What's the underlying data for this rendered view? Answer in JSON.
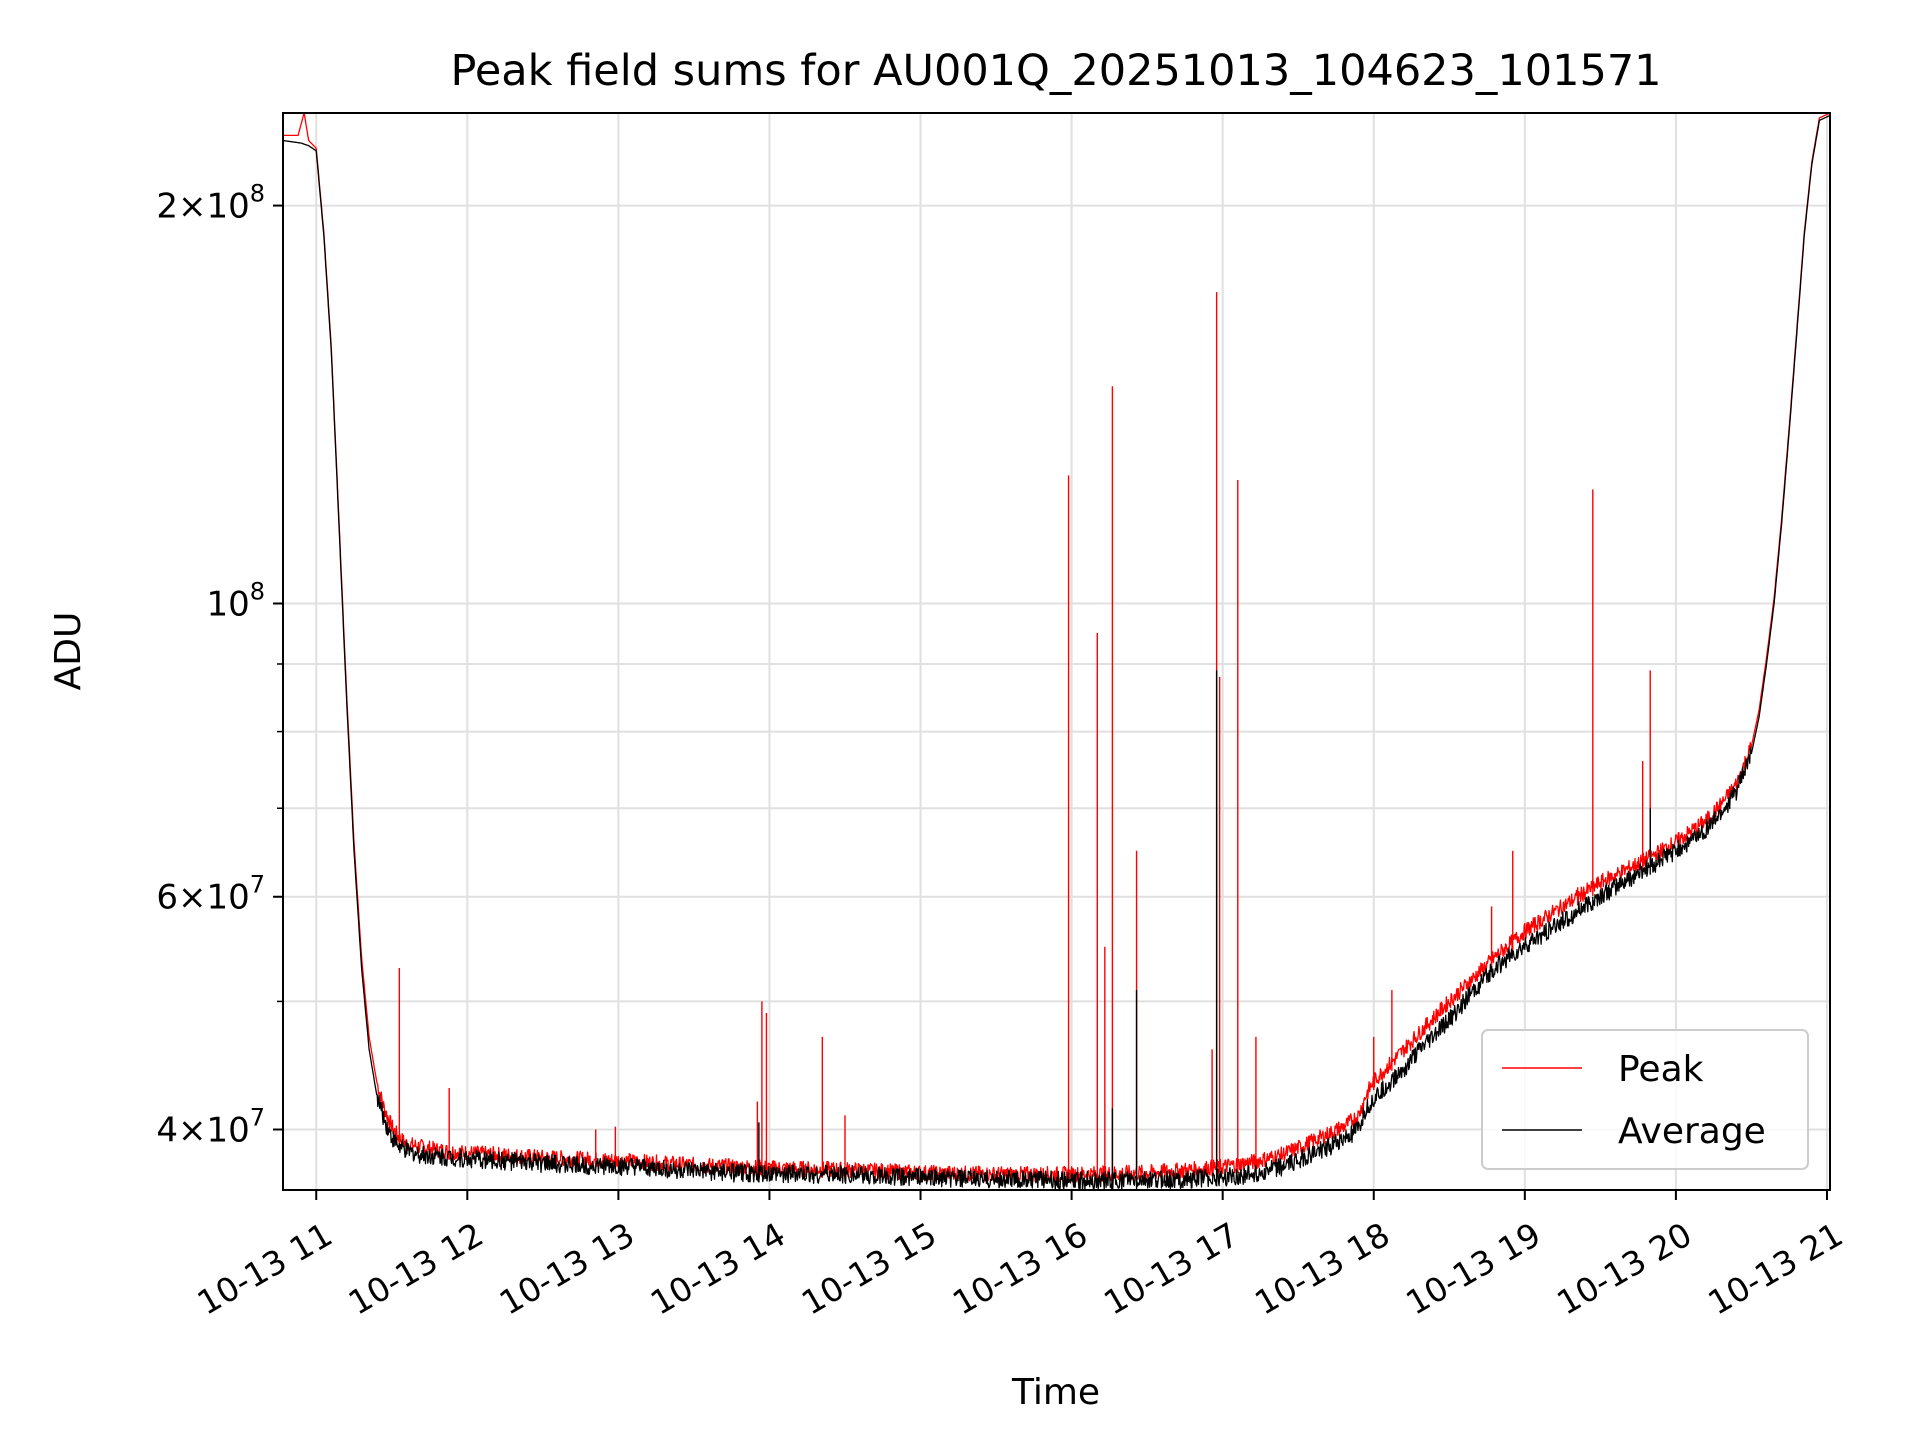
{
  "chart_data": {
    "type": "line",
    "title": "Peak field sums for AU001Q_20251013_104623_101571",
    "xlabel": "Time",
    "ylabel": "ADU",
    "yscale": "log",
    "ylim": [
      36000000,
      235000000
    ],
    "xlim_hours": [
      10.78,
      21.02
    ],
    "x_unit": "hour of 2025-10-13",
    "grid": true,
    "legend_position": "lower right",
    "xticks": [
      {
        "value": 11,
        "label": "10-13 11"
      },
      {
        "value": 12,
        "label": "10-13 12"
      },
      {
        "value": 13,
        "label": "10-13 13"
      },
      {
        "value": 14,
        "label": "10-13 14"
      },
      {
        "value": 15,
        "label": "10-13 15"
      },
      {
        "value": 16,
        "label": "10-13 16"
      },
      {
        "value": 17,
        "label": "10-13 17"
      },
      {
        "value": 18,
        "label": "10-13 18"
      },
      {
        "value": 19,
        "label": "10-13 19"
      },
      {
        "value": 20,
        "label": "10-13 20"
      },
      {
        "value": 21,
        "label": "10-13 21"
      }
    ],
    "yticks": [
      {
        "value": 40000000,
        "base": "4×10",
        "exp": "7"
      },
      {
        "value": 60000000,
        "base": "6×10",
        "exp": "7"
      },
      {
        "value": 100000000,
        "base": "10",
        "exp": "8"
      },
      {
        "value": 200000000,
        "base": "2×10",
        "exp": "8"
      }
    ],
    "yminor": [
      50000000,
      70000000,
      80000000,
      90000000
    ],
    "series": [
      {
        "name": "Average",
        "color": "#000000",
        "x": [
          10.78,
          10.9,
          10.95,
          11.0,
          11.05,
          11.1,
          11.15,
          11.2,
          11.25,
          11.3,
          11.35,
          11.4,
          11.45,
          11.5,
          11.55,
          11.6,
          11.7,
          11.8,
          12.0,
          12.5,
          13.0,
          13.5,
          14.0,
          14.5,
          15.0,
          15.5,
          16.0,
          16.5,
          16.8,
          17.0,
          17.2,
          17.4,
          17.6,
          17.8,
          17.9,
          17.95,
          18.0,
          18.2,
          18.5,
          18.8,
          19.0,
          19.2,
          19.5,
          19.8,
          20.0,
          20.2,
          20.3,
          20.4,
          20.5,
          20.55,
          20.6,
          20.65,
          20.7,
          20.75,
          20.8,
          20.85,
          20.9,
          20.95,
          21.02
        ],
        "y": [
          224000000,
          223000000,
          222000000,
          220000000,
          190000000,
          155000000,
          115000000,
          85000000,
          65000000,
          53000000,
          46000000,
          42500000,
          40700000,
          39500000,
          38800000,
          38500000,
          38300000,
          38200000,
          38000000,
          37700000,
          37500000,
          37200000,
          37000000,
          37000000,
          36800000,
          36700000,
          36600000,
          36600000,
          36700000,
          36800000,
          37000000,
          37500000,
          38300000,
          39300000,
          40000000,
          41500000,
          42200000,
          44500000,
          48500000,
          53000000,
          55000000,
          57000000,
          60000000,
          63000000,
          65000000,
          67500000,
          69500000,
          72000000,
          77000000,
          82000000,
          90000000,
          100000000,
          115000000,
          135000000,
          160000000,
          190000000,
          215000000,
          232000000,
          234000000
        ]
      },
      {
        "name": "Peak",
        "color": "#ff0000",
        "x": [
          10.78,
          10.88,
          10.92,
          10.95,
          11.0,
          11.05,
          11.1,
          11.15,
          11.2,
          11.25,
          11.3,
          11.35,
          11.4,
          11.45,
          11.5,
          11.55,
          11.6,
          11.7,
          11.8,
          12.0,
          12.5,
          13.0,
          13.5,
          14.0,
          14.5,
          15.0,
          15.5,
          16.0,
          16.5,
          16.8,
          17.0,
          17.2,
          17.4,
          17.6,
          17.8,
          17.9,
          17.95,
          18.0,
          18.2,
          18.5,
          18.8,
          19.0,
          19.2,
          19.5,
          19.8,
          20.0,
          20.2,
          20.3,
          20.4,
          20.5,
          20.55,
          20.6,
          20.65,
          20.7,
          20.75,
          20.8,
          20.85,
          20.9,
          20.95,
          21.02
        ],
        "y": [
          226000000,
          226000000,
          235000000,
          224000000,
          221000000,
          191000000,
          156000000,
          116000000,
          86000000,
          66000000,
          54000000,
          47000000,
          43500000,
          41500000,
          40200000,
          39400000,
          39000000,
          38800000,
          38600000,
          38400000,
          38100000,
          37900000,
          37600000,
          37400000,
          37300000,
          37100000,
          37000000,
          37000000,
          37100000,
          37300000,
          37500000,
          37800000,
          38300000,
          39200000,
          40200000,
          41000000,
          42500000,
          43500000,
          46000000,
          50000000,
          54000000,
          56500000,
          58500000,
          61500000,
          64000000,
          66000000,
          68500000,
          70500000,
          73000000,
          78000000,
          83000000,
          91000000,
          101000000,
          116000000,
          136000000,
          161000000,
          191000000,
          216000000,
          233000000,
          235000000
        ]
      }
    ],
    "peak_spikes": [
      {
        "x": 11.55,
        "y": 53000000
      },
      {
        "x": 11.88,
        "y": 43000000
      },
      {
        "x": 12.85,
        "y": 40000000
      },
      {
        "x": 12.98,
        "y": 40200000
      },
      {
        "x": 13.92,
        "y": 42000000
      },
      {
        "x": 13.95,
        "y": 50000000
      },
      {
        "x": 13.98,
        "y": 49000000
      },
      {
        "x": 14.35,
        "y": 47000000
      },
      {
        "x": 14.5,
        "y": 41000000
      },
      {
        "x": 15.98,
        "y": 125000000
      },
      {
        "x": 16.17,
        "y": 95000000
      },
      {
        "x": 16.22,
        "y": 55000000
      },
      {
        "x": 16.27,
        "y": 146000000
      },
      {
        "x": 16.43,
        "y": 65000000
      },
      {
        "x": 16.93,
        "y": 46000000
      },
      {
        "x": 16.96,
        "y": 172000000
      },
      {
        "x": 16.98,
        "y": 88000000
      },
      {
        "x": 17.1,
        "y": 124000000
      },
      {
        "x": 17.22,
        "y": 47000000
      },
      {
        "x": 18.0,
        "y": 47000000
      },
      {
        "x": 18.12,
        "y": 51000000
      },
      {
        "x": 18.78,
        "y": 59000000
      },
      {
        "x": 18.92,
        "y": 65000000
      },
      {
        "x": 19.35,
        "y": 61000000
      },
      {
        "x": 19.45,
        "y": 122000000
      },
      {
        "x": 19.78,
        "y": 76000000
      },
      {
        "x": 19.83,
        "y": 89000000
      }
    ],
    "average_spikes": [
      {
        "x": 13.93,
        "y": 40500000
      },
      {
        "x": 16.27,
        "y": 41500000
      },
      {
        "x": 16.43,
        "y": 51000000
      },
      {
        "x": 16.96,
        "y": 89000000
      },
      {
        "x": 19.45,
        "y": 60000000
      },
      {
        "x": 19.83,
        "y": 70000000
      }
    ]
  }
}
